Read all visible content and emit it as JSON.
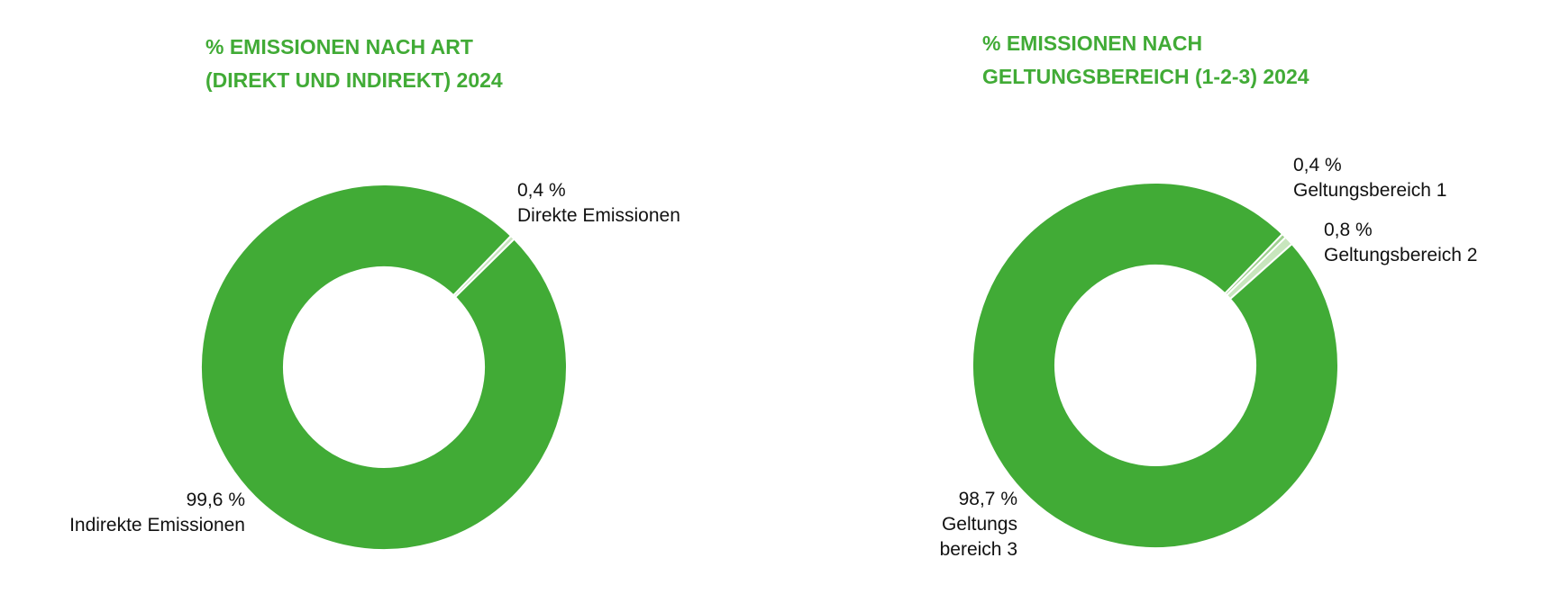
{
  "chart_data": [
    {
      "type": "donut",
      "title": "% EMISSIONEN NACH ART\n(DIREKT UND INDIREKT) 2024",
      "categories": [
        "Direkte Emissionen",
        "Indirekte Emissionen"
      ],
      "values": [
        0.4,
        99.6
      ],
      "value_labels": [
        "0,4 %",
        "99,6 %"
      ],
      "colors": [
        "#c9e3c0",
        "#41ab36"
      ]
    },
    {
      "type": "donut",
      "title": "% EMISSIONEN NACH\nGELTUNGSBEREICH (1-2-3) 2024",
      "categories": [
        "Geltungsbereich 1",
        "Geltungsbereich 2",
        "Geltungs\nbereich 3"
      ],
      "values": [
        0.4,
        0.8,
        98.7
      ],
      "value_labels": [
        "0,4 %",
        "0,8 %",
        "98,7 %"
      ],
      "colors": [
        "#9fd18f",
        "#c8e6bd",
        "#41ab36"
      ]
    }
  ]
}
